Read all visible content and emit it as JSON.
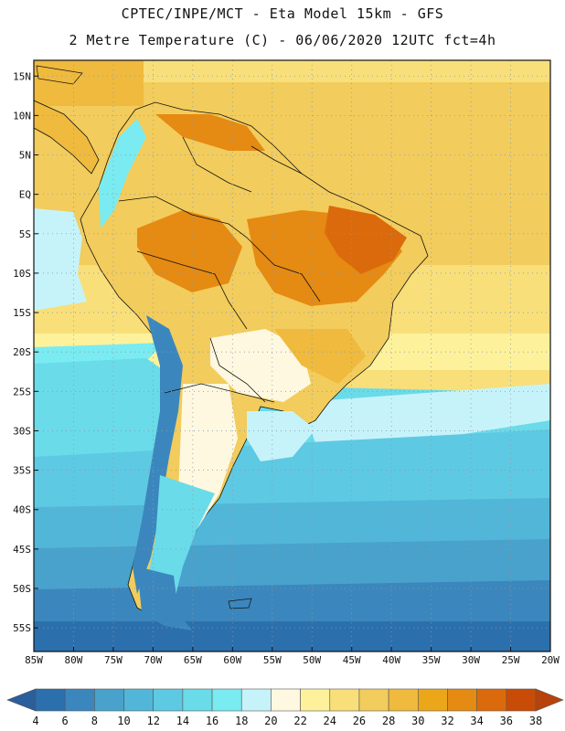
{
  "title": {
    "line1": "CPTEC/INPE/MCT -  Eta Model 15km - GFS",
    "line2": "2 Metre Temperature (C) - 06/06/2020 12UTC fct=4h"
  },
  "map": {
    "lon_range": [
      -85,
      -20
    ],
    "lat_range": [
      -58,
      17
    ],
    "lon_ticks": [
      {
        "value": -85,
        "label": "85W"
      },
      {
        "value": -80,
        "label": "80W"
      },
      {
        "value": -75,
        "label": "75W"
      },
      {
        "value": -70,
        "label": "70W"
      },
      {
        "value": -65,
        "label": "65W"
      },
      {
        "value": -60,
        "label": "60W"
      },
      {
        "value": -55,
        "label": "55W"
      },
      {
        "value": -50,
        "label": "50W"
      },
      {
        "value": -45,
        "label": "45W"
      },
      {
        "value": -40,
        "label": "40W"
      },
      {
        "value": -35,
        "label": "35W"
      },
      {
        "value": -30,
        "label": "30W"
      },
      {
        "value": -25,
        "label": "25W"
      },
      {
        "value": -20,
        "label": "20W"
      }
    ],
    "lat_ticks": [
      {
        "value": 15,
        "label": "15N"
      },
      {
        "value": 10,
        "label": "10N"
      },
      {
        "value": 5,
        "label": "5N"
      },
      {
        "value": 0,
        "label": "EQ"
      },
      {
        "value": -5,
        "label": "5S"
      },
      {
        "value": -10,
        "label": "10S"
      },
      {
        "value": -15,
        "label": "15S"
      },
      {
        "value": -20,
        "label": "20S"
      },
      {
        "value": -25,
        "label": "25S"
      },
      {
        "value": -30,
        "label": "30S"
      },
      {
        "value": -35,
        "label": "35S"
      },
      {
        "value": -40,
        "label": "40S"
      },
      {
        "value": -45,
        "label": "45S"
      },
      {
        "value": -50,
        "label": "50S"
      },
      {
        "value": -55,
        "label": "55S"
      }
    ]
  },
  "colorbar": {
    "labels": [
      "4",
      "6",
      "8",
      "10",
      "12",
      "14",
      "16",
      "18",
      "20",
      "22",
      "24",
      "26",
      "28",
      "30",
      "32",
      "34",
      "36",
      "38"
    ],
    "colors": [
      "#2c6fad",
      "#3b87bd",
      "#48a2cc",
      "#52b6d8",
      "#5ec9e2",
      "#6adbe9",
      "#7aebf0",
      "#c6f3fa",
      "#fff8e0",
      "#fdf29b",
      "#f8df7a",
      "#f2cc5c",
      "#efba3d",
      "#eba61a",
      "#e58a12",
      "#db6a0c",
      "#c84c07"
    ],
    "low_color": "#2a5e9c",
    "high_color": "#b8430a"
  }
}
